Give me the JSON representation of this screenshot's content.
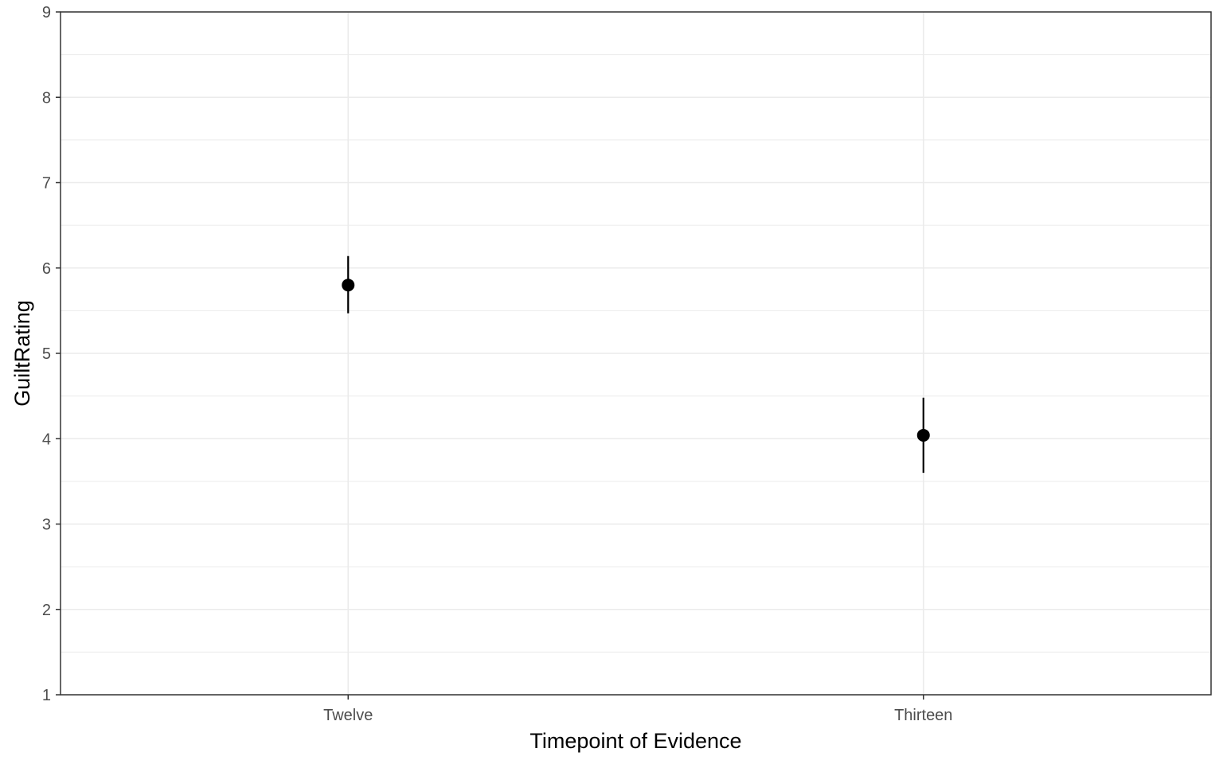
{
  "chart_data": {
    "type": "scatter",
    "title": "",
    "xlabel": "Timepoint of Evidence",
    "ylabel": "GuiltRating",
    "categories": [
      "Twelve",
      "Thirteen"
    ],
    "ylim": [
      1,
      9
    ],
    "yticks": [
      1,
      2,
      3,
      4,
      5,
      6,
      7,
      8,
      9
    ],
    "grid": true,
    "legend": "none",
    "series": [
      {
        "values": [
          5.8,
          4.04
        ],
        "lower": [
          5.47,
          3.6
        ],
        "upper": [
          6.14,
          4.48
        ]
      }
    ],
    "colors": {
      "point": "#000000",
      "grid": "#ebebeb",
      "panel_border": "#333333",
      "tick_text": "#4d4d4d"
    }
  }
}
